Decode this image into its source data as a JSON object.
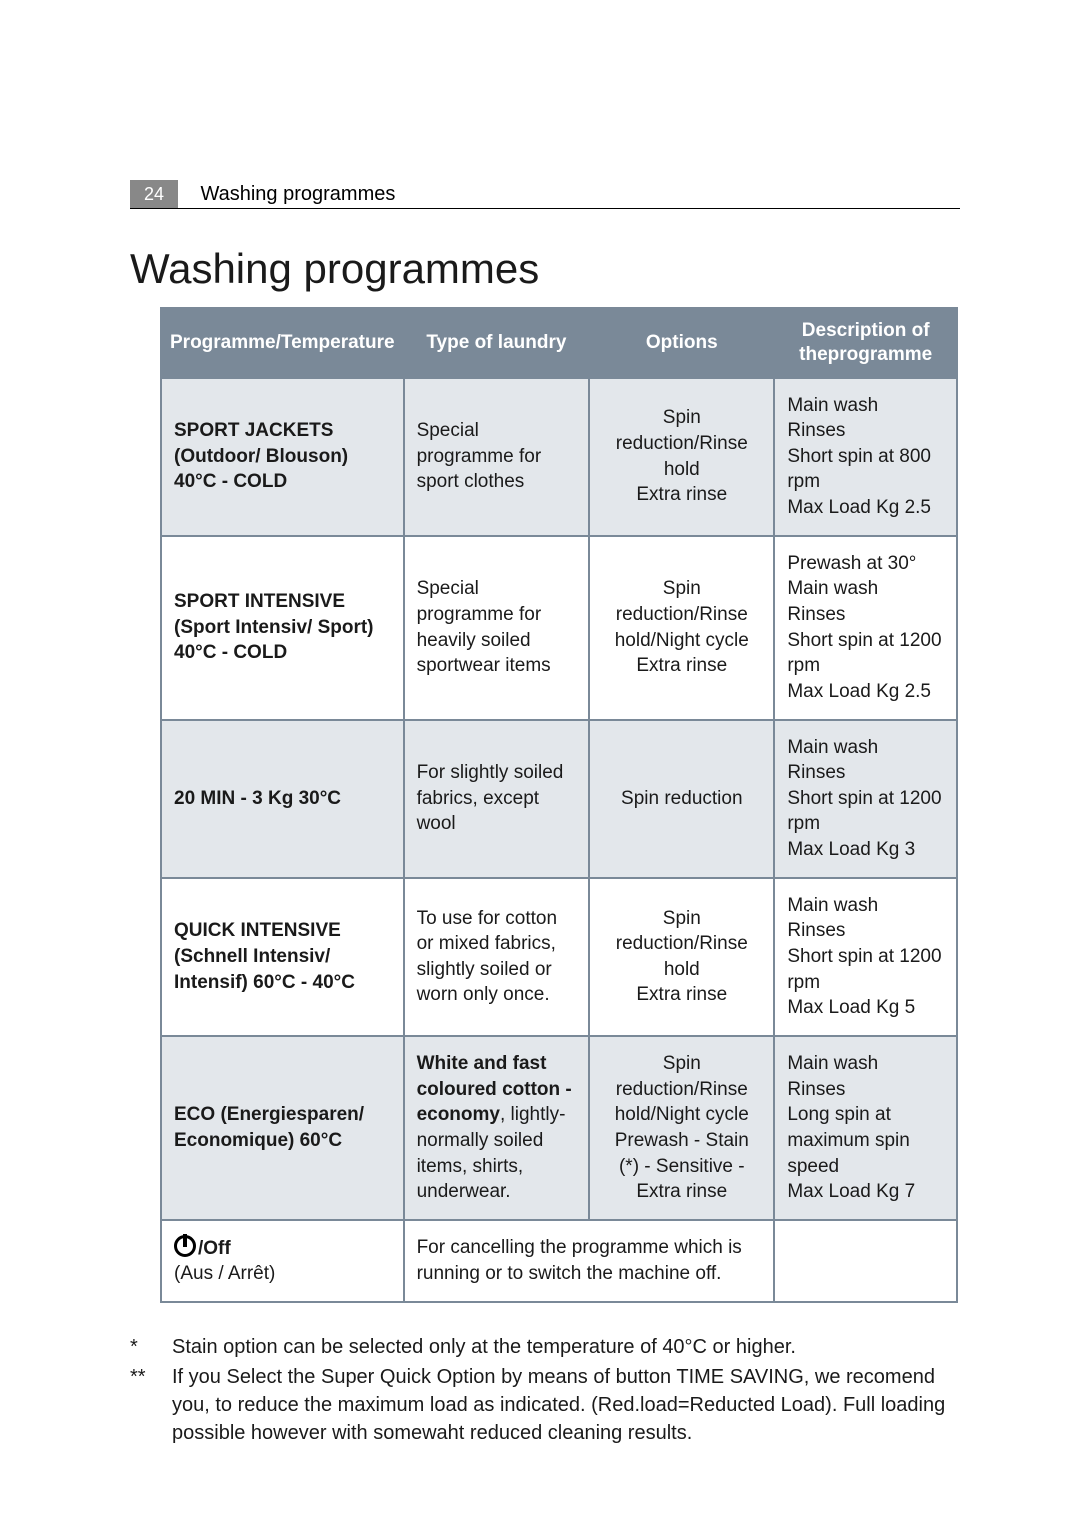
{
  "header": {
    "page_number": "24",
    "page_title": "Washing programmes"
  },
  "heading": "Washing programmes",
  "table": {
    "columns": [
      "Programme/\nTemperature",
      "Type of laundry",
      "Options",
      "Description of the\nprogramme"
    ],
    "rows": [
      {
        "shaded": true,
        "programme": "SPORT JACKETS (Outdoor/ Blouson) 40°C - COLD",
        "type": "Special programme for sport clothes",
        "options": "Spin reduction/Rinse hold\nExtra rinse",
        "desc": "Main wash\nRinses\nShort spin at 800 rpm\nMax Load Kg 2.5"
      },
      {
        "shaded": false,
        "programme": "SPORT INTENSIVE (Sport Intensiv/ Sport) 40°C - COLD",
        "type": "Special programme for heavily soiled sportwear items",
        "options": "Spin reduction/Rinse hold/Night cycle\nExtra rinse",
        "desc": "Prewash at 30°\nMain wash\nRinses\nShort spin at 1200 rpm\nMax Load Kg 2.5"
      },
      {
        "shaded": true,
        "programme": "20 MIN - 3 Kg 30°C",
        "type": "For slightly soiled fabrics, except wool",
        "options": "Spin reduction",
        "desc": "Main wash\nRinses\nShort spin at 1200 rpm\nMax Load Kg 3"
      },
      {
        "shaded": false,
        "programme": "QUICK INTENSIVE (Schnell Intensiv/ Intensif) 60°C - 40°C",
        "type": "To use for cotton or mixed fabrics, slightly soiled or worn only once.",
        "options": "Spin reduction/Rinse hold\nExtra rinse",
        "desc": "Main wash\nRinses\nShort spin at 1200 rpm\nMax Load Kg 5"
      },
      {
        "shaded": true,
        "programme": "ECO (Energiesparen/ Economique) 60°C",
        "type_bold": "White and fast coloured cotton -",
        "type_rest_bold": "economy",
        "type_rest": ", lightly-normally soiled items, shirts, underwear.",
        "options": "Spin reduction/Rinse hold/Night cycle\nPrewash - Stain (*) - Sensitive - Extra rinse",
        "desc": "Main wash\nRinses\nLong spin at maximum spin speed\nMax Load Kg 7"
      },
      {
        "shaded": false,
        "off_label": "/Off",
        "off_sub": "(Aus / Arrêt)",
        "off_text": "For cancelling the programme which is running or to switch the machine off."
      }
    ]
  },
  "footnotes": {
    "f1": "Stain option can be selected only at the temperature of 40°C or higher.",
    "f2": "If you Select the Super Quick Option by means of button TIME SAVING, we recomend you, to reduce the maximum load as indicated. (Red.load=Reducted Load). Full loading possible however with somewaht reduced cleaning results."
  }
}
